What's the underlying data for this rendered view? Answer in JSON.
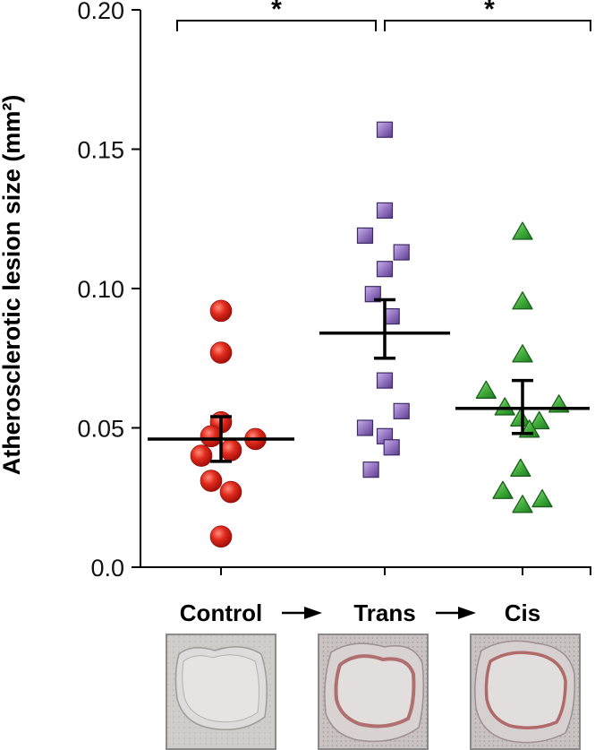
{
  "chart_data": {
    "type": "scatter",
    "ylabel": "Atherosclerotic lesion size (mm²)",
    "ylim": [
      0.0,
      0.2
    ],
    "yticks": [
      "0.0",
      "0.05",
      "0.10",
      "0.15",
      "0.20"
    ],
    "ytick_values": [
      0.0,
      0.05,
      0.1,
      0.15,
      0.2
    ],
    "categories": [
      "Control",
      "Trans",
      "Cis"
    ],
    "series": [
      {
        "name": "Control",
        "marker": "circle",
        "color": "#d42020",
        "points": [
          {
            "x": 0.0,
            "y": 0.092
          },
          {
            "x": 0.0,
            "y": 0.077
          },
          {
            "x": 0.0,
            "y": 0.052
          },
          {
            "x": -0.1,
            "y": 0.047
          },
          {
            "x": 0.35,
            "y": 0.046
          },
          {
            "x": -0.2,
            "y": 0.04
          },
          {
            "x": 0.1,
            "y": 0.042
          },
          {
            "x": -0.1,
            "y": 0.031
          },
          {
            "x": 0.1,
            "y": 0.027
          },
          {
            "x": 0.0,
            "y": 0.011
          }
        ],
        "mean": 0.046,
        "sem": [
          0.038,
          0.054
        ]
      },
      {
        "name": "Trans",
        "marker": "square",
        "color": "#8a6bb8",
        "points": [
          {
            "x": 0.0,
            "y": 0.157
          },
          {
            "x": 0.0,
            "y": 0.128
          },
          {
            "x": -0.2,
            "y": 0.119
          },
          {
            "x": 0.17,
            "y": 0.113
          },
          {
            "x": 0.0,
            "y": 0.107
          },
          {
            "x": -0.12,
            "y": 0.098
          },
          {
            "x": 0.07,
            "y": 0.09
          },
          {
            "x": 0.0,
            "y": 0.067
          },
          {
            "x": 0.17,
            "y": 0.056
          },
          {
            "x": -0.2,
            "y": 0.05
          },
          {
            "x": 0.0,
            "y": 0.047
          },
          {
            "x": 0.07,
            "y": 0.043
          },
          {
            "x": -0.14,
            "y": 0.035
          }
        ],
        "mean": 0.084,
        "sem": [
          0.075,
          0.096
        ]
      },
      {
        "name": "Cis",
        "marker": "triangle",
        "color": "#3aa83a",
        "points": [
          {
            "x": 0.0,
            "y": 0.12
          },
          {
            "x": 0.0,
            "y": 0.095
          },
          {
            "x": 0.0,
            "y": 0.076
          },
          {
            "x": -0.37,
            "y": 0.063
          },
          {
            "x": 0.37,
            "y": 0.058
          },
          {
            "x": -0.18,
            "y": 0.057
          },
          {
            "x": -0.02,
            "y": 0.053
          },
          {
            "x": 0.17,
            "y": 0.052
          },
          {
            "x": 0.07,
            "y": 0.049
          },
          {
            "x": -0.02,
            "y": 0.035
          },
          {
            "x": -0.2,
            "y": 0.027
          },
          {
            "x": 0.2,
            "y": 0.024
          },
          {
            "x": 0.0,
            "y": 0.022
          }
        ],
        "mean": 0.057,
        "sem": [
          0.048,
          0.067
        ]
      }
    ],
    "significance": [
      {
        "from": "Control",
        "to": "Trans",
        "label": "*"
      },
      {
        "from": "Trans",
        "to": "Cis",
        "label": "*"
      }
    ],
    "grid": false
  },
  "colors": {
    "axis": "#000000",
    "control": "#d42020",
    "trans": "#8a6bb8",
    "cis": "#3aa83a"
  }
}
